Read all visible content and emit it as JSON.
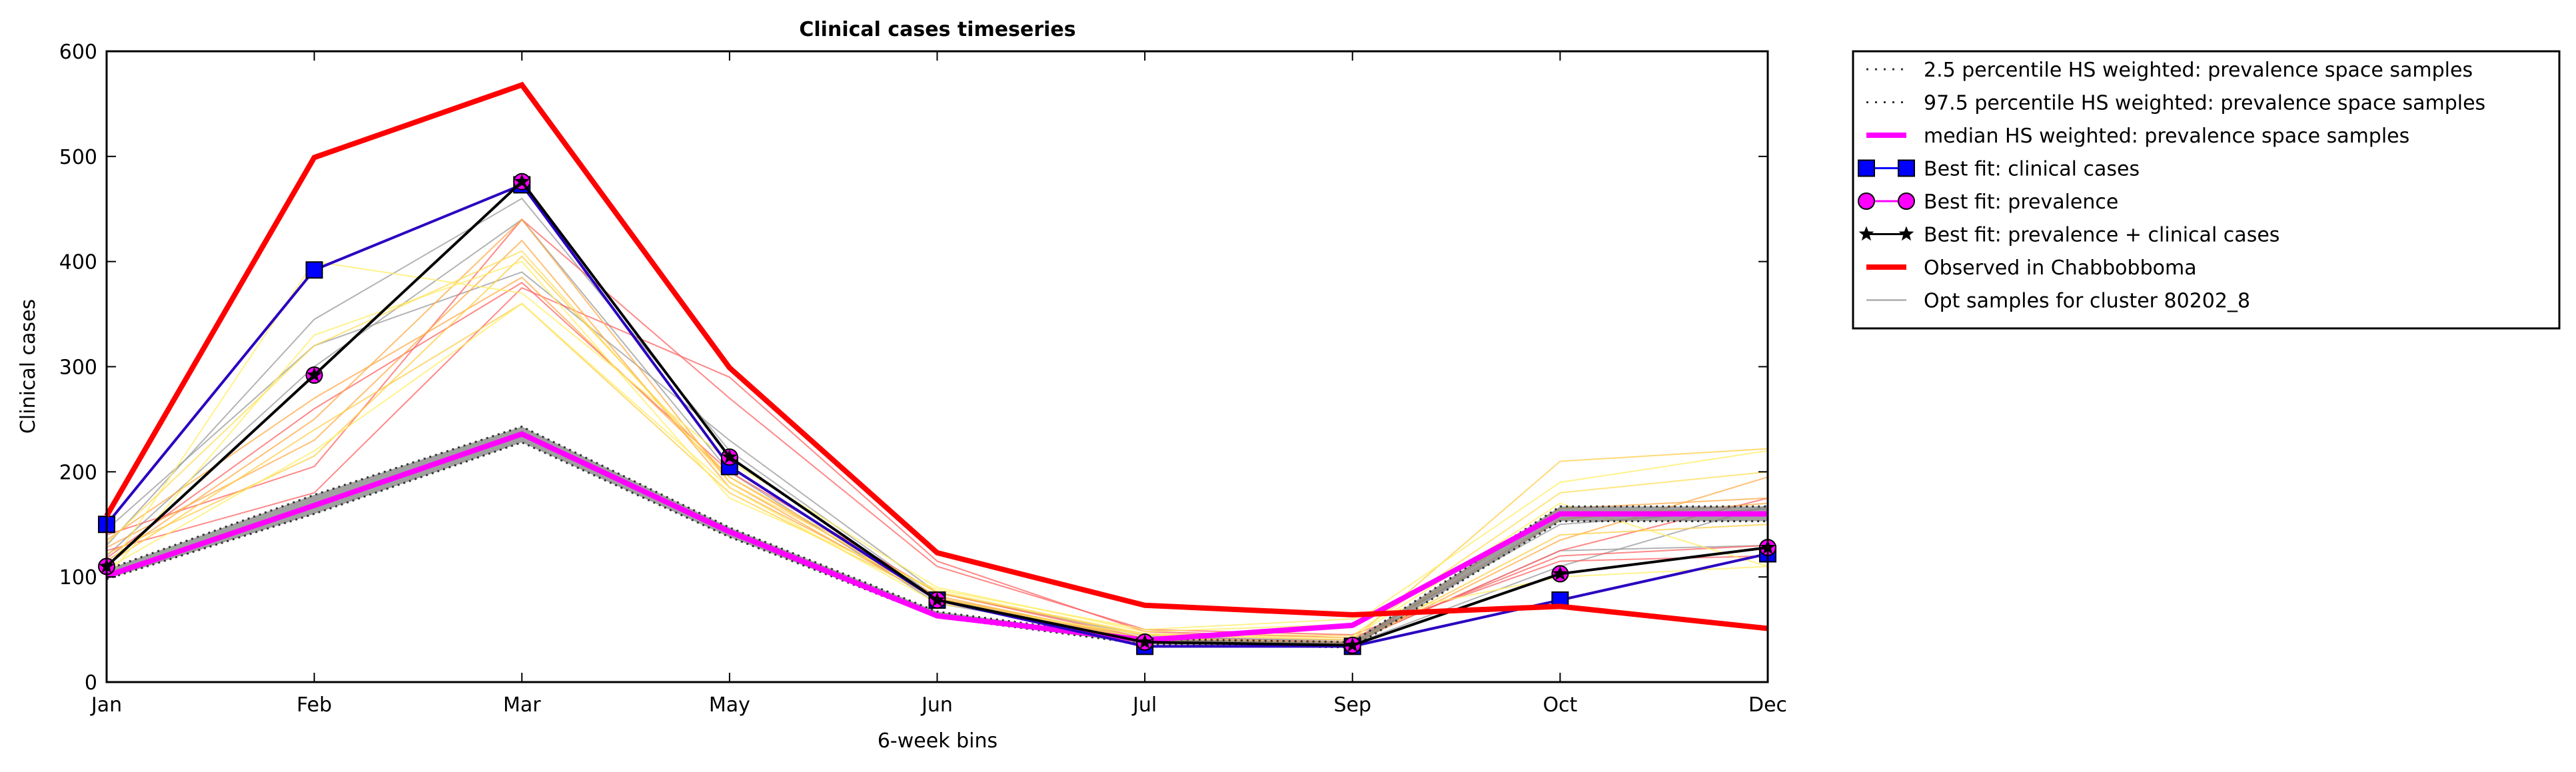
{
  "chart_data": {
    "type": "line",
    "title": "Clinical cases timeseries",
    "xlabel": "6-week bins",
    "ylabel": "Clinical cases",
    "categories": [
      "Jan",
      "Feb",
      "Mar",
      "May",
      "Jun",
      "Jul",
      "Sep",
      "Oct",
      "Dec"
    ],
    "ylim": [
      0,
      600
    ],
    "yticks": [
      0,
      100,
      200,
      300,
      400,
      500,
      600
    ],
    "grid": false,
    "legend_position": "outside-top-right",
    "series": [
      {
        "name": "2.5 percentile HS weighted: prevalence space samples",
        "style": "dotted",
        "color": "#555555",
        "values": [
          98,
          160,
          228,
          138,
          62,
          36,
          33,
          153,
          153
        ]
      },
      {
        "name": "97.5 percentile HS weighted: prevalence space samples",
        "style": "dotted",
        "color": "#555555",
        "values": [
          107,
          178,
          243,
          147,
          67,
          41,
          38,
          167,
          167
        ]
      },
      {
        "name": "median HS weighted: prevalence space samples",
        "style": "solid",
        "color": "#ff00ff",
        "values": [
          101,
          168,
          236,
          143,
          63,
          40,
          54,
          160,
          160
        ]
      },
      {
        "name": "Best fit: clinical cases",
        "style": "square-markers",
        "color": "#0000ff",
        "values": [
          150,
          392,
          473,
          205,
          78,
          34,
          34,
          78,
          122
        ]
      },
      {
        "name": "Best fit: prevalence",
        "style": "circle-markers",
        "color": "#ff00ff",
        "values": [
          110,
          292,
          476,
          214,
          78,
          38,
          35,
          103,
          128
        ]
      },
      {
        "name": "Best fit: prevalence + clinical cases",
        "style": "star-markers",
        "color": "#000000",
        "values": [
          110,
          292,
          476,
          214,
          78,
          38,
          35,
          103,
          128
        ]
      },
      {
        "name": "Observed in Chabbobboma",
        "style": "solid",
        "color": "#ff0000",
        "values": [
          158,
          499,
          568,
          299,
          123,
          73,
          64,
          72,
          51
        ]
      },
      {
        "name": "Opt samples for cluster 80202_8",
        "style": "solid",
        "color": "#999999",
        "samples": [
          {
            "color": "#999999",
            "values": [
              130,
              345,
              460,
              220,
              80,
              42,
              40,
              150,
              165
            ]
          },
          {
            "color": "#999999",
            "values": [
              120,
              300,
              440,
              200,
              75,
              40,
              36,
              110,
              168
            ]
          },
          {
            "color": "#999999",
            "values": [
              145,
              320,
              390,
              230,
              85,
              44,
              38,
              125,
              130
            ]
          },
          {
            "color": "#ff6060",
            "values": [
              140,
              205,
              440,
              270,
              110,
              50,
              45,
              115,
              120
            ]
          },
          {
            "color": "#ff6060",
            "values": [
              125,
              180,
              375,
              290,
              115,
              48,
              42,
              120,
              130
            ]
          },
          {
            "color": "#ff6060",
            "values": [
              118,
              260,
              380,
              200,
              85,
              42,
              38,
              125,
              175
            ]
          },
          {
            "color": "#ffaa44",
            "values": [
              135,
              270,
              385,
              195,
              80,
              40,
              36,
              135,
              195
            ]
          },
          {
            "color": "#ffaa44",
            "values": [
              115,
              250,
              440,
              190,
              78,
              38,
              35,
              165,
              175
            ]
          },
          {
            "color": "#ffaa44",
            "values": [
              128,
              230,
              420,
              185,
              82,
              40,
              38,
              155,
              170
            ]
          },
          {
            "color": "#ffcc44",
            "values": [
              122,
              215,
              405,
              195,
              85,
              45,
              40,
              210,
              222
            ]
          },
          {
            "color": "#ffcc44",
            "values": [
              112,
              240,
              360,
              180,
              80,
              42,
              37,
              140,
              150
            ]
          },
          {
            "color": "#ffee66",
            "values": [
              105,
              400,
              370,
              210,
              90,
              48,
              55,
              190,
              220
            ]
          },
          {
            "color": "#ffee66",
            "values": [
              100,
              330,
              400,
              175,
              88,
              50,
              60,
              100,
              110
            ]
          },
          {
            "color": "#ffee66",
            "values": [
              108,
              220,
              360,
              185,
              75,
              45,
              42,
              170,
              110
            ]
          },
          {
            "color": "#ffdd55",
            "values": [
              132,
              320,
              410,
              190,
              86,
              46,
              44,
              180,
              200
            ]
          }
        ]
      }
    ]
  }
}
